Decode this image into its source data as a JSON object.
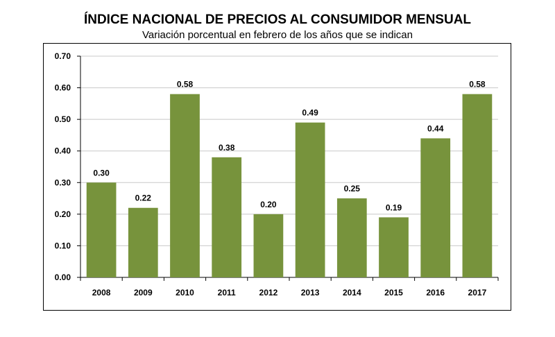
{
  "title": "ÍNDICE NACIONAL DE PRECIOS AL CONSUMIDOR MENSUAL",
  "subtitle": "Variación porcentual en febrero de los años que se indican",
  "chart_data": {
    "type": "bar",
    "title": "ÍNDICE NACIONAL DE PRECIOS AL CONSUMIDOR MENSUAL",
    "subtitle": "Variación porcentual en febrero de los años que se indican",
    "categories": [
      "2008",
      "2009",
      "2010",
      "2011",
      "2012",
      "2013",
      "2014",
      "2015",
      "2016",
      "2017"
    ],
    "values": [
      0.3,
      0.22,
      0.58,
      0.38,
      0.2,
      0.49,
      0.25,
      0.19,
      0.44,
      0.58
    ],
    "data_labels": [
      "0.30",
      "0.22",
      "0.58",
      "0.38",
      "0.20",
      "0.49",
      "0.25",
      "0.19",
      "0.44",
      "0.58"
    ],
    "y_ticks": [
      "0.00",
      "0.10",
      "0.20",
      "0.30",
      "0.40",
      "0.50",
      "0.60",
      "0.70"
    ],
    "ylim": [
      0,
      0.7
    ],
    "grid": true,
    "xlabel": "",
    "ylabel": "",
    "bar_color": "#77933c"
  }
}
